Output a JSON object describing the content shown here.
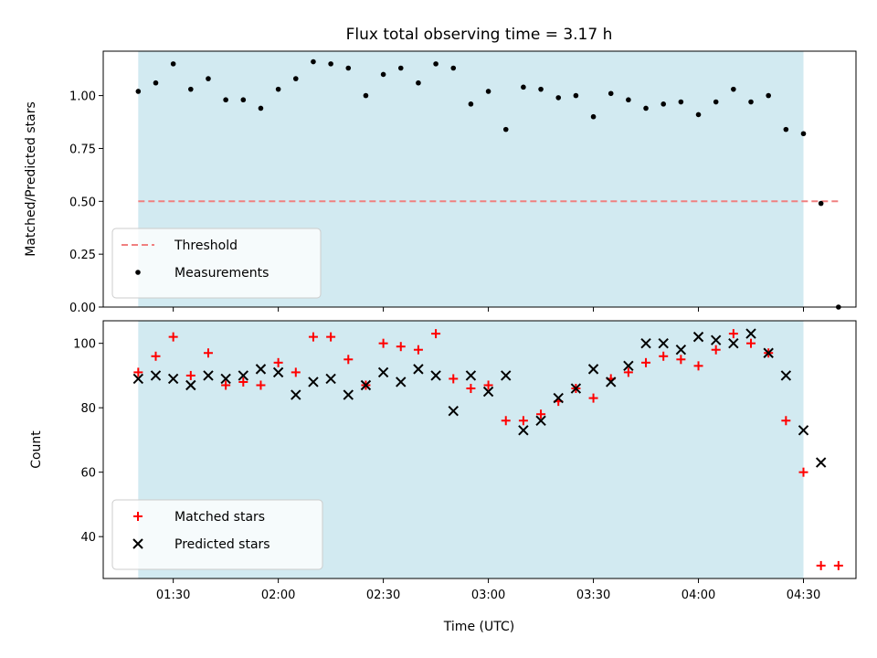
{
  "figure": {
    "title": "Flux total observing time = 3.17 h",
    "xlabel": "Time (UTC)"
  },
  "colors": {
    "span": "#add8e6",
    "threshold": "#f08080",
    "measurement": "#000000",
    "matched": "#ff0000",
    "predicted": "#000000"
  },
  "chart_data": [
    {
      "type": "scatter",
      "ylabel": "Matched/Predicted stars",
      "xlim": [
        "01:10",
        "04:45"
      ],
      "ylim": [
        0,
        1.21
      ],
      "yticks": [
        0.0,
        0.25,
        0.5,
        0.75,
        1.0
      ],
      "ytick_labels": [
        "0.00",
        "0.25",
        "0.50",
        "0.75",
        "1.00"
      ],
      "xticks": [
        "01:30",
        "02:00",
        "02:30",
        "03:00",
        "03:30",
        "04:00",
        "04:30"
      ],
      "show_xtick_labels": false,
      "shaded_span": {
        "x0": "01:20",
        "x1": "04:30"
      },
      "threshold": {
        "name": "Threshold",
        "value": 0.5,
        "x0": "01:20",
        "x1": "04:40",
        "style": "dashed"
      },
      "legend_position": "lower-left",
      "series": [
        {
          "name": "Measurements",
          "marker": "dot",
          "x": [
            "01:20",
            "01:25",
            "01:30",
            "01:35",
            "01:40",
            "01:45",
            "01:50",
            "01:55",
            "02:00",
            "02:05",
            "02:10",
            "02:15",
            "02:20",
            "02:25",
            "02:30",
            "02:35",
            "02:40",
            "02:45",
            "02:50",
            "02:55",
            "03:00",
            "03:05",
            "03:10",
            "03:15",
            "03:20",
            "03:25",
            "03:30",
            "03:35",
            "03:40",
            "03:45",
            "03:50",
            "03:55",
            "04:00",
            "04:05",
            "04:10",
            "04:15",
            "04:20",
            "04:25",
            "04:30",
            "04:35",
            "04:40"
          ],
          "y": [
            1.02,
            1.06,
            1.15,
            1.03,
            1.08,
            0.98,
            0.98,
            0.94,
            1.03,
            1.08,
            1.16,
            1.15,
            1.13,
            1.0,
            1.1,
            1.13,
            1.06,
            1.15,
            1.13,
            0.96,
            1.02,
            0.84,
            1.04,
            1.03,
            0.99,
            1.0,
            0.9,
            1.01,
            0.98,
            0.94,
            0.96,
            0.97,
            0.91,
            0.97,
            1.03,
            0.97,
            1.0,
            0.84,
            0.82,
            0.49,
            0.0
          ]
        }
      ]
    },
    {
      "type": "scatter",
      "ylabel": "Count",
      "xlim": [
        "01:10",
        "04:45"
      ],
      "ylim": [
        27,
        107
      ],
      "yticks": [
        40,
        60,
        80,
        100
      ],
      "ytick_labels": [
        "40",
        "60",
        "80",
        "100"
      ],
      "xticks": [
        "01:30",
        "02:00",
        "02:30",
        "03:00",
        "03:30",
        "04:00",
        "04:30"
      ],
      "xtick_labels": [
        "01:30",
        "02:00",
        "02:30",
        "03:00",
        "03:30",
        "04:00",
        "04:30"
      ],
      "shaded_span": {
        "x0": "01:20",
        "x1": "04:30"
      },
      "legend_position": "lower-left",
      "series": [
        {
          "name": "Matched stars",
          "marker": "plus",
          "x": [
            "01:20",
            "01:25",
            "01:30",
            "01:35",
            "01:40",
            "01:45",
            "01:50",
            "01:55",
            "02:00",
            "02:05",
            "02:10",
            "02:15",
            "02:20",
            "02:25",
            "02:30",
            "02:35",
            "02:40",
            "02:45",
            "02:50",
            "02:55",
            "03:00",
            "03:05",
            "03:10",
            "03:15",
            "03:20",
            "03:25",
            "03:30",
            "03:35",
            "03:40",
            "03:45",
            "03:50",
            "03:55",
            "04:00",
            "04:05",
            "04:10",
            "04:15",
            "04:20",
            "04:25",
            "04:30",
            "04:35",
            "04:40"
          ],
          "y": [
            91,
            96,
            102,
            90,
            97,
            87,
            88,
            87,
            94,
            91,
            102,
            102,
            95,
            87,
            100,
            99,
            98,
            103,
            89,
            86,
            87,
            76,
            76,
            78,
            82,
            86,
            83,
            89,
            91,
            94,
            96,
            95,
            93,
            98,
            103,
            100,
            97,
            76,
            60,
            31,
            31
          ]
        },
        {
          "name": "Predicted stars",
          "marker": "x",
          "x": [
            "01:20",
            "01:25",
            "01:30",
            "01:35",
            "01:40",
            "01:45",
            "01:50",
            "01:55",
            "02:00",
            "02:05",
            "02:10",
            "02:15",
            "02:20",
            "02:25",
            "02:30",
            "02:35",
            "02:40",
            "02:45",
            "02:50",
            "02:55",
            "03:00",
            "03:05",
            "03:10",
            "03:15",
            "03:20",
            "03:25",
            "03:30",
            "03:35",
            "03:40",
            "03:45",
            "03:50",
            "03:55",
            "04:00",
            "04:05",
            "04:10",
            "04:15",
            "04:20",
            "04:25",
            "04:30",
            "04:35"
          ],
          "y": [
            89,
            90,
            89,
            87,
            90,
            89,
            90,
            92,
            91,
            84,
            88,
            89,
            84,
            87,
            91,
            88,
            92,
            90,
            79,
            90,
            85,
            90,
            73,
            76,
            83,
            86,
            92,
            88,
            93,
            100,
            100,
            98,
            102,
            101,
            100,
            103,
            97,
            90,
            73,
            63
          ]
        }
      ]
    }
  ]
}
